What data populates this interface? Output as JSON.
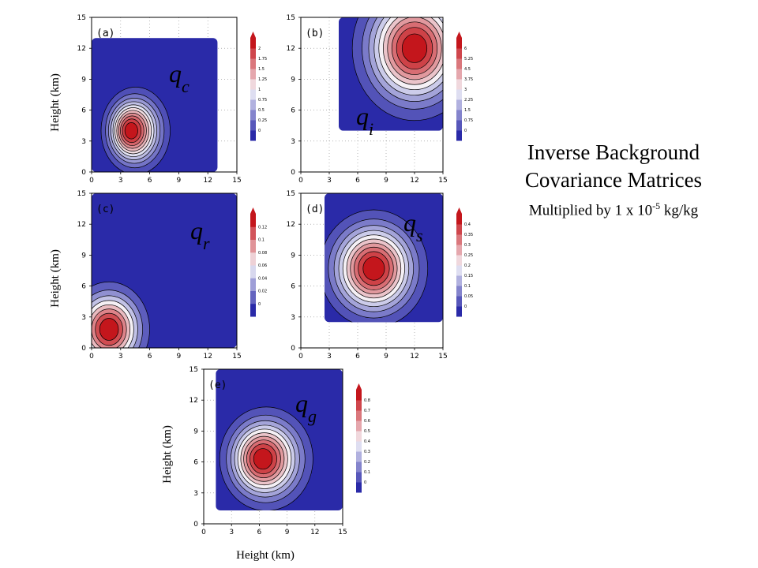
{
  "figure": {
    "title_lines": [
      "Inverse Background",
      "Covariance Matrices"
    ],
    "subtitle_prefix": "Multiplied by 1 x 10",
    "subtitle_exponent": "-5",
    "subtitle_suffix": " kg/kg",
    "colors": {
      "low": "#2a2aa8",
      "high": "#c4161c",
      "contour": "#000000"
    }
  },
  "chart_data": [
    {
      "type": "heatmap",
      "panel": "(a)",
      "species": "q",
      "species_sub": "c",
      "ylabel": "Height (km)",
      "xlabel": "",
      "xlim": [
        0,
        15
      ],
      "ylim": [
        0,
        15
      ],
      "xticks": [
        "0",
        "3",
        "6",
        "9",
        "12",
        "15"
      ],
      "yticks": [
        "0",
        "3",
        "6",
        "9",
        "12",
        "15"
      ],
      "domain": {
        "x": [
          0,
          13
        ],
        "y": [
          0,
          13
        ]
      },
      "peak": {
        "x": 4,
        "y": 4,
        "sx": 1.6,
        "sy": 1.9,
        "skew": 0.7
      },
      "levels": 12,
      "colorbar": {
        "ticks": [
          "0",
          "0.25",
          "0.5",
          "0.75",
          "1",
          "1.25",
          "1.5",
          "1.75",
          "2"
        ]
      }
    },
    {
      "type": "heatmap",
      "panel": "(b)",
      "species": "q",
      "species_sub": "i",
      "ylabel": "",
      "xlabel": "",
      "xlim": [
        0,
        15
      ],
      "ylim": [
        0,
        15
      ],
      "xticks": [
        "0",
        "3",
        "6",
        "9",
        "12",
        "15"
      ],
      "yticks": [
        "0",
        "3",
        "6",
        "9",
        "12",
        "15"
      ],
      "domain": {
        "x": [
          4,
          15
        ],
        "y": [
          4,
          15
        ]
      },
      "peak": {
        "x": 12,
        "y": 12,
        "sx": 3.0,
        "sy": 3.2,
        "skew": 0
      },
      "levels": 11,
      "colorbar": {
        "ticks": [
          "0",
          "0.75",
          "1.5",
          "2.25",
          "3",
          "3.75",
          "4.5",
          "5.25",
          "6"
        ]
      }
    },
    {
      "type": "heatmap",
      "panel": "(c)",
      "species": "q",
      "species_sub": "r",
      "ylabel": "Height (km)",
      "xlabel": "",
      "xlim": [
        0,
        15
      ],
      "ylim": [
        0,
        15
      ],
      "xticks": [
        "0",
        "3",
        "6",
        "9",
        "12",
        "15"
      ],
      "yticks": [
        "0",
        "3",
        "6",
        "9",
        "12",
        "15"
      ],
      "domain": {
        "x": [
          0,
          15
        ],
        "y": [
          0,
          15
        ]
      },
      "peak": {
        "x": 1.8,
        "y": 1.8,
        "sx": 2.0,
        "sy": 2.2,
        "skew": 0
      },
      "levels": 9,
      "colorbar": {
        "ticks": [
          "0",
          "0.02",
          "0.04",
          "0.06",
          "0.08",
          "0.1",
          "0.12"
        ]
      }
    },
    {
      "type": "heatmap",
      "panel": "(d)",
      "species": "q",
      "species_sub": "s",
      "ylabel": "",
      "xlabel": "",
      "xlim": [
        0,
        15
      ],
      "ylim": [
        0,
        15
      ],
      "xticks": [
        "0",
        "3",
        "6",
        "9",
        "12",
        "15"
      ],
      "yticks": [
        "0",
        "3",
        "6",
        "9",
        "12",
        "15"
      ],
      "domain": {
        "x": [
          2.5,
          15
        ],
        "y": [
          2.5,
          15
        ]
      },
      "peak": {
        "x": 7.7,
        "y": 7.7,
        "sx": 2.6,
        "sy": 2.6,
        "skew": 0
      },
      "levels": 11,
      "colorbar": {
        "ticks": [
          "0",
          "0.05",
          "0.1",
          "0.15",
          "0.2",
          "0.25",
          "0.3",
          "0.35",
          "0.4"
        ]
      }
    },
    {
      "type": "heatmap",
      "panel": "(e)",
      "species": "q",
      "species_sub": "g",
      "ylabel": "Height (km)",
      "xlabel": "Height (km)",
      "xlim": [
        0,
        15
      ],
      "ylim": [
        0,
        15
      ],
      "xticks": [
        "0",
        "3",
        "6",
        "9",
        "12",
        "15"
      ],
      "yticks": [
        "0",
        "3",
        "6",
        "9",
        "12",
        "15"
      ],
      "domain": {
        "x": [
          1.3,
          15
        ],
        "y": [
          1.3,
          15
        ]
      },
      "peak": {
        "x": 6.3,
        "y": 6.3,
        "sx": 2.3,
        "sy": 2.3,
        "skew": 0.6
      },
      "levels": 11,
      "colorbar": {
        "ticks": [
          "0",
          "0.1",
          "0.2",
          "0.3",
          "0.4",
          "0.5",
          "0.6",
          "0.7",
          "0.8"
        ]
      }
    }
  ]
}
